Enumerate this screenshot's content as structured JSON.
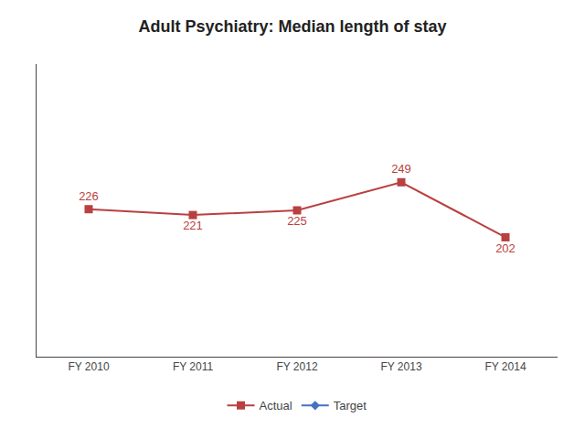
{
  "chart_data": {
    "type": "line",
    "title": "Adult Psychiatry: Median length of stay",
    "categories": [
      "FY 2010",
      "FY 2011",
      "FY 2012",
      "FY 2013",
      "FY 2014"
    ],
    "series": [
      {
        "name": "Actual",
        "color": "#B94040",
        "marker": "square",
        "values": [
          226,
          221,
          225,
          249,
          202
        ]
      },
      {
        "name": "Target",
        "color": "#4472C4",
        "marker": "diamond",
        "values": [
          null,
          null,
          null,
          null,
          null
        ]
      }
    ],
    "ylim": [
      100,
      350
    ],
    "yticks": [],
    "grid": false,
    "legend": "bottom",
    "data_labels": true,
    "tick_labels": "x"
  }
}
